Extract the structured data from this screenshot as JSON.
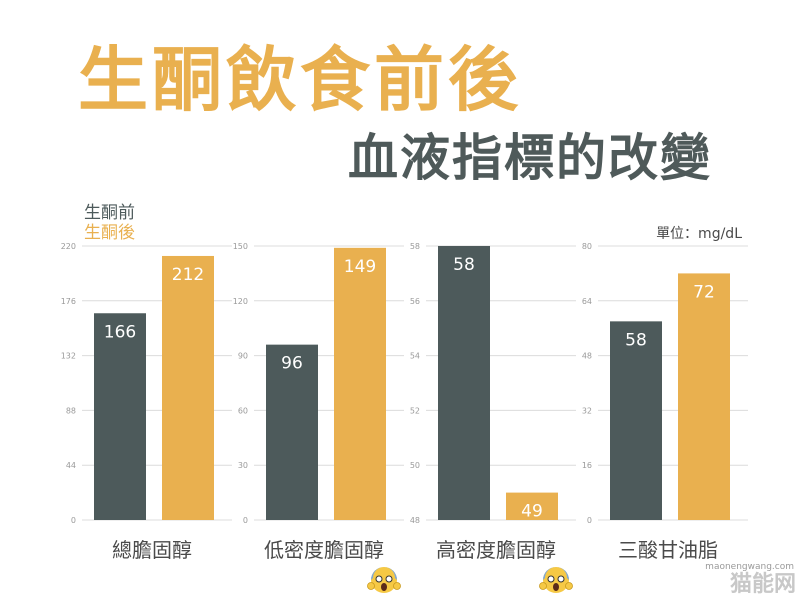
{
  "title": "生酮飲食前後",
  "subtitle": "血液指標的改變",
  "colors": {
    "before": "#4d5a5b",
    "after": "#e9b04f",
    "grid": "#dcdcdc",
    "tick": "#9a9a9a",
    "text": "#4a4a4a"
  },
  "chart_data": {
    "type": "bar",
    "unit_label": "單位：mg/dL",
    "legend": [
      "生酮前",
      "生酮後"
    ],
    "legend_position": "top-left",
    "grid": true,
    "panels": [
      {
        "category": "總膽固醇",
        "ylim": [
          0,
          220
        ],
        "ticks": [
          0,
          44,
          88,
          132,
          176,
          220
        ],
        "values": [
          166,
          212
        ],
        "alarm": false
      },
      {
        "category": "低密度膽固醇",
        "ylim": [
          0,
          150
        ],
        "ticks": [
          0,
          30,
          60,
          90,
          120,
          150
        ],
        "values": [
          96,
          149
        ],
        "alarm": true
      },
      {
        "category": "高密度膽固醇",
        "ylim": [
          48,
          58
        ],
        "ticks": [
          48,
          50,
          52,
          54,
          56,
          58
        ],
        "values": [
          58,
          49
        ],
        "alarm": true
      },
      {
        "category": "三酸甘油脂",
        "ylim": [
          0,
          80
        ],
        "ticks": [
          0,
          16,
          32,
          48,
          64,
          80
        ],
        "values": [
          58,
          72
        ],
        "alarm": false
      }
    ]
  },
  "watermark": {
    "text": "猫能网",
    "url": "maonengwang.com"
  }
}
